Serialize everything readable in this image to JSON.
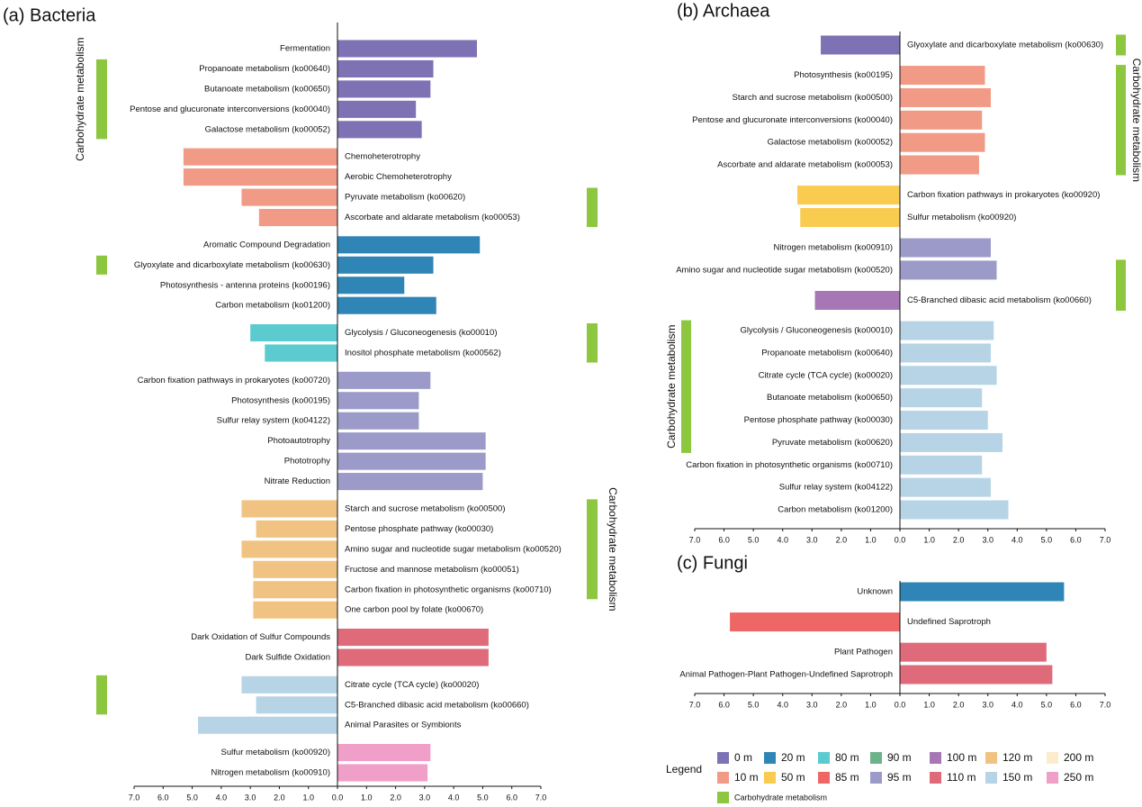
{
  "chart_data": [
    {
      "type": "bar",
      "orientation": "horizontal",
      "title": "(a) Bacteria",
      "categories": [
        "Fermentation",
        "Propanoate metabolism (ko00640)",
        "Butanoate metabolism (ko00650)",
        "Pentose and glucuronate interconversions (ko00040)",
        "Galactose metabolism (ko00052)",
        "Chemoheterotrophy",
        "Aerobic Chemoheterotrophy",
        "Pyruvate metabolism (ko00620)",
        "Ascorbate and aldarate metabolism (ko00053)",
        "Aromatic Compound Degradation",
        "Glyoxylate and dicarboxylate metabolism (ko00630)",
        "Photosynthesis - antenna proteins (ko00196)",
        "Carbon metabolism (ko01200)",
        "Glycolysis / Gluconeogenesis (ko00010)",
        "Inositol phosphate metabolism (ko00562)",
        "Carbon fixation pathways in prokaryotes (ko00720)",
        "Photosynthesis (ko00195)",
        "Sulfur relay system (ko04122)",
        "Photoautotrophy",
        "Phototrophy",
        "Nitrate Reduction",
        "Starch and sucrose metabolism (ko00500)",
        "Pentose phosphate pathway (ko00030)",
        "Amino sugar and nucleotide sugar metabolism (ko00520)",
        "Fructose and mannose metabolism (ko00051)",
        "Carbon fixation in photosynthetic organisms (ko00710)",
        "One carbon pool by folate (ko00670)",
        "Dark Oxidation of Sulfur Compounds",
        "Dark Sulfide Oxidation",
        "Citrate cycle (TCA cycle) (ko00020)",
        "C5-Branched dibasic acid metabolism (ko00660)",
        "Animal Parasites or Symbionts",
        "Sulfur metabolism (ko00920)",
        "Nitrogen metabolism (ko00910)"
      ],
      "values": [
        4.8,
        3.3,
        3.2,
        2.7,
        2.9,
        -5.3,
        -5.3,
        -3.3,
        -2.7,
        4.9,
        3.3,
        2.3,
        3.4,
        -3.0,
        -2.5,
        3.2,
        2.8,
        2.8,
        5.1,
        5.1,
        5.0,
        -3.3,
        -2.8,
        -3.3,
        -2.9,
        -2.9,
        -2.9,
        5.2,
        5.2,
        -3.3,
        -2.8,
        -4.8,
        3.2,
        3.1
      ],
      "groups": [
        "0 m",
        "0 m",
        "0 m",
        "0 m",
        "0 m",
        "10 m",
        "10 m",
        "10 m",
        "10 m",
        "20 m",
        "20 m",
        "20 m",
        "20 m",
        "80 m",
        "80 m",
        "95 m",
        "95 m",
        "95 m",
        "95 m",
        "95 m",
        "95 m",
        "120 m",
        "120 m",
        "120 m",
        "120 m",
        "120 m",
        "120 m",
        "110 m",
        "110 m",
        "150 m",
        "150 m",
        "150 m",
        "250 m",
        "250 m"
      ],
      "xlim": [
        -7,
        7
      ],
      "xticks": [
        {
          "value": -7,
          "label": "7.0"
        },
        {
          "value": -6,
          "label": "6.0"
        },
        {
          "value": -5,
          "label": "5.0"
        },
        {
          "value": -4,
          "label": "4.0"
        },
        {
          "value": -3,
          "label": "3.0"
        },
        {
          "value": -2,
          "label": "2.0"
        },
        {
          "value": -1,
          "label": "1.0"
        },
        {
          "value": 0,
          "label": "0.0"
        },
        {
          "value": 1,
          "label": "1.0"
        },
        {
          "value": 2,
          "label": "2.0"
        },
        {
          "value": 3,
          "label": "3.0"
        },
        {
          "value": 4,
          "label": "4.0"
        },
        {
          "value": 5,
          "label": "5.0"
        },
        {
          "value": 6,
          "label": "6.0"
        },
        {
          "value": 7,
          "label": "7.0"
        }
      ],
      "brackets": [
        {
          "first": "Propanoate metabolism (ko00640)",
          "last": "Galactose metabolism (ko00052)",
          "side": "left",
          "label": "Carbohydrate metabolism"
        },
        {
          "first": "Pyruvate metabolism (ko00620)",
          "last": "Ascorbate and aldarate metabolism (ko00053)",
          "side": "right"
        },
        {
          "first": "Glyoxylate and dicarboxylate metabolism (ko00630)",
          "last": "Glyoxylate and dicarboxylate metabolism (ko00630)",
          "side": "left"
        },
        {
          "first": "Glycolysis / Gluconeogenesis (ko00010)",
          "last": "Inositol phosphate metabolism (ko00562)",
          "side": "right"
        },
        {
          "first": "Starch and sucrose metabolism (ko00500)",
          "last": "Carbon fixation in photosynthetic organisms (ko00710)",
          "side": "right",
          "label": "Carbohydrate metabolism"
        },
        {
          "first": "Citrate cycle (TCA cycle) (ko00020)",
          "last": "C5-Branched dibasic acid metabolism (ko00660)",
          "side": "left"
        }
      ]
    },
    {
      "type": "bar",
      "orientation": "horizontal",
      "title": "(b) Archaea",
      "categories": [
        "Glyoxylate and dicarboxylate metabolism (ko00630)",
        "Photosynthesis (ko00195)",
        "Starch and sucrose metabolism (ko00500)",
        "Pentose and glucuronate interconversions (ko00040)",
        "Galactose metabolism (ko00052)",
        "Ascorbate and aldarate metabolism (ko00053)",
        "Carbon fixation pathways in prokaryotes (ko00920)",
        "Sulfur metabolism (ko00920)",
        "Nitrogen metabolism (ko00910)",
        "Amino sugar and nucleotide sugar metabolism (ko00520)",
        "C5-Branched dibasic acid metabolism (ko00660)",
        "Glycolysis / Gluconeogenesis (ko00010)",
        "Propanoate metabolism (ko00640)",
        "Citrate cycle (TCA cycle) (ko00020)",
        "Butanoate metabolism (ko00650)",
        "Pentose phosphate pathway (ko00030)",
        "Pyruvate metabolism (ko00620)",
        "Carbon fixation in photosynthetic organisms (ko00710)",
        "Sulfur relay system (ko04122)",
        "Carbon metabolism (ko01200)"
      ],
      "values": [
        -2.7,
        2.9,
        3.1,
        2.8,
        2.9,
        2.7,
        -3.5,
        -3.4,
        3.1,
        3.3,
        -2.9,
        3.2,
        3.1,
        3.3,
        2.8,
        3.0,
        3.5,
        2.8,
        3.1,
        3.7
      ],
      "groups": [
        "0 m",
        "10 m",
        "10 m",
        "10 m",
        "10 m",
        "10 m",
        "50 m",
        "50 m",
        "95 m",
        "95 m",
        "100 m",
        "150 m",
        "150 m",
        "150 m",
        "150 m",
        "150 m",
        "150 m",
        "150 m",
        "150 m",
        "150 m"
      ],
      "xlim": [
        -7,
        7
      ],
      "xticks": [
        {
          "value": -7,
          "label": "7.0"
        },
        {
          "value": -6,
          "label": "6.0"
        },
        {
          "value": -5,
          "label": "5.0"
        },
        {
          "value": -4,
          "label": "4.0"
        },
        {
          "value": -3,
          "label": "3.0"
        },
        {
          "value": -2,
          "label": "2.0"
        },
        {
          "value": -1,
          "label": "1.0"
        },
        {
          "value": 0,
          "label": "0.0"
        },
        {
          "value": 1,
          "label": "1.0"
        },
        {
          "value": 2,
          "label": "2.0"
        },
        {
          "value": 3,
          "label": "3.0"
        },
        {
          "value": 4,
          "label": "4.0"
        },
        {
          "value": 5,
          "label": "5.0"
        },
        {
          "value": 6,
          "label": "6.0"
        },
        {
          "value": 7,
          "label": "7.0"
        }
      ],
      "brackets": [
        {
          "first": "Glyoxylate and dicarboxylate metabolism (ko00630)",
          "last": "Glyoxylate and dicarboxylate metabolism (ko00630)",
          "side": "right"
        },
        {
          "first": "Photosynthesis (ko00195)",
          "last": "Ascorbate and aldarate metabolism (ko00053)",
          "side": "right",
          "label": "Carbohydrate metabolism"
        },
        {
          "first": "Amino sugar and nucleotide sugar metabolism (ko00520)",
          "last": "C5-Branched dibasic acid metabolism (ko00660)",
          "side": "right"
        },
        {
          "first": "Glycolysis / Gluconeogenesis (ko00010)",
          "last": "Pyruvate metabolism (ko00620)",
          "side": "left",
          "label": "Carbohydrate metabolism"
        }
      ]
    },
    {
      "type": "bar",
      "orientation": "horizontal",
      "title": "(c) Fungi",
      "categories": [
        "Unknown",
        "Undefined Saprotroph",
        "Plant Pathogen",
        "Animal Pathogen-Plant Pathogen-Undefined Saprotroph"
      ],
      "values": [
        5.6,
        -5.8,
        5.0,
        5.2
      ],
      "groups": [
        "20 m",
        "85 m",
        "110 m",
        "110 m"
      ],
      "xlim": [
        -7,
        7
      ],
      "xticks": [
        {
          "value": -7,
          "label": "7.0"
        },
        {
          "value": -6,
          "label": "6.0"
        },
        {
          "value": -5,
          "label": "5.0"
        },
        {
          "value": -4,
          "label": "4.0"
        },
        {
          "value": -3,
          "label": "3.0"
        },
        {
          "value": -2,
          "label": "2.0"
        },
        {
          "value": -1,
          "label": "1.0"
        },
        {
          "value": 0,
          "label": "0.0"
        },
        {
          "value": 1,
          "label": "1.0"
        },
        {
          "value": 2,
          "label": "2.0"
        },
        {
          "value": 3,
          "label": "3.0"
        },
        {
          "value": 4,
          "label": "4.0"
        },
        {
          "value": 5,
          "label": "5.0"
        },
        {
          "value": 6,
          "label": "6.0"
        },
        {
          "value": 7,
          "label": "7.0"
        }
      ],
      "brackets": []
    }
  ],
  "legend": {
    "title": "Legend",
    "entries": [
      {
        "name": "0 m",
        "color": "#7e72b4"
      },
      {
        "name": "20 m",
        "color": "#2f86b6"
      },
      {
        "name": "80 m",
        "color": "#5ccbd0"
      },
      {
        "name": "90 m",
        "color": "#6bb38a"
      },
      {
        "name": "100 m",
        "color": "#a777b5"
      },
      {
        "name": "120 m",
        "color": "#f0c382"
      },
      {
        "name": "200 m",
        "color": "#fdeccb"
      },
      {
        "name": "10 m",
        "color": "#f19a85"
      },
      {
        "name": "50 m",
        "color": "#f9cb4e"
      },
      {
        "name": "85 m",
        "color": "#ee6766"
      },
      {
        "name": "95 m",
        "color": "#9b9ac8"
      },
      {
        "name": "110 m",
        "color": "#df6b7a"
      },
      {
        "name": "150 m",
        "color": "#b6d4e6"
      },
      {
        "name": "250 m",
        "color": "#f09fc8"
      }
    ],
    "highlight": {
      "name": "Carbohydrate metabolism",
      "color": "#8dc63f"
    }
  }
}
